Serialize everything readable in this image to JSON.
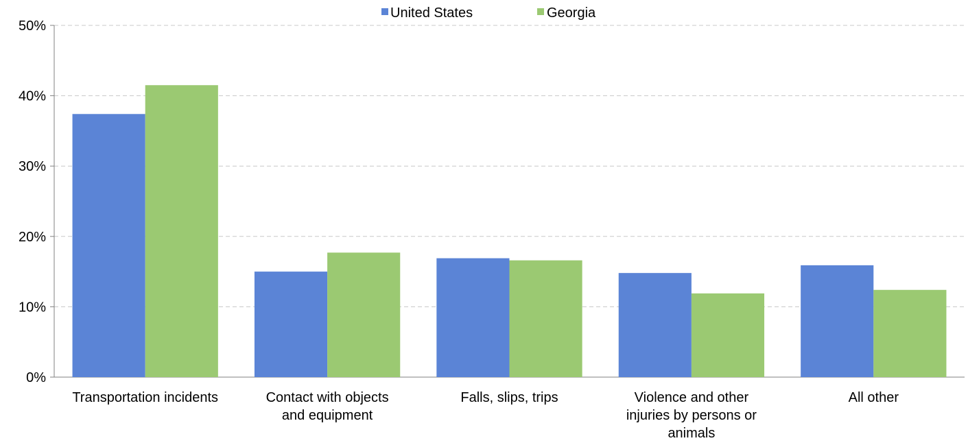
{
  "chart_data": {
    "type": "bar",
    "title": "",
    "xlabel": "",
    "ylabel": "",
    "categories": [
      [
        "Transportation incidents"
      ],
      [
        "Contact with objects",
        "and equipment"
      ],
      [
        "Falls, slips, trips"
      ],
      [
        "Violence and other",
        "injuries by persons or",
        "animals"
      ],
      [
        "All other"
      ]
    ],
    "series": [
      {
        "name": "United States",
        "color": "#5b84d6",
        "values": [
          37.4,
          15.0,
          16.9,
          14.8,
          15.9
        ]
      },
      {
        "name": "Georgia",
        "color": "#9bc972",
        "values": [
          41.5,
          17.7,
          16.6,
          11.9,
          12.4
        ]
      }
    ],
    "ylim": [
      0,
      50
    ],
    "yticks": [
      0,
      10,
      20,
      30,
      40,
      50
    ],
    "ytick_labels": [
      "0%",
      "10%",
      "20%",
      "30%",
      "40%",
      "50%"
    ],
    "grid": true,
    "legend_position": "top-center"
  }
}
